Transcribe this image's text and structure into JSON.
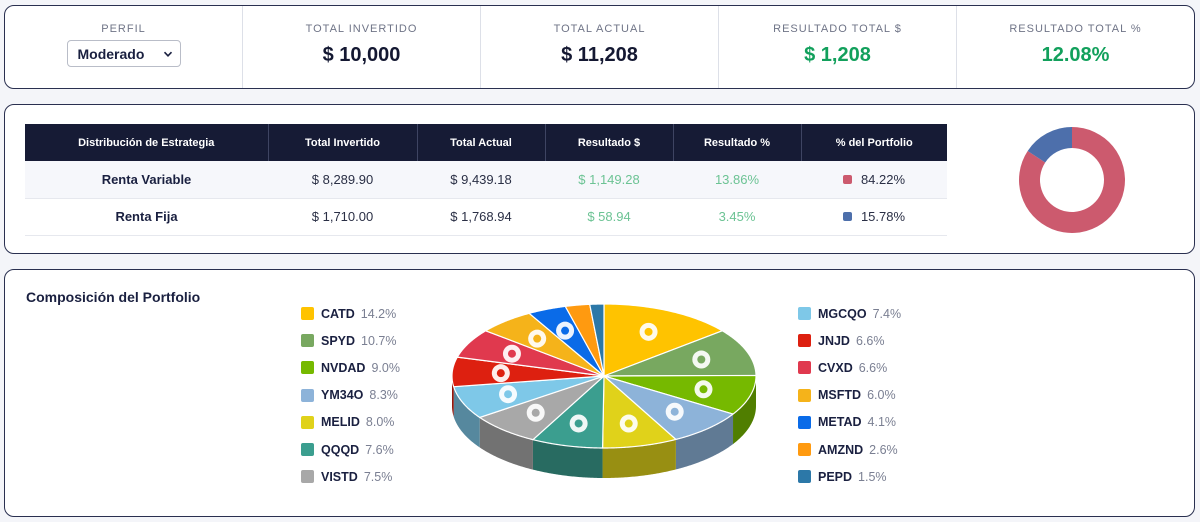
{
  "kpis": {
    "perfil_label": "PERFIL",
    "perfil_value": "Moderado",
    "total_invertido_label": "TOTAL INVERTIDO",
    "total_invertido_value": "$ 10,000",
    "total_actual_label": "TOTAL ACTUAL",
    "total_actual_value": "$ 11,208",
    "resultado_usd_label": "RESULTADO TOTAL $",
    "resultado_usd_value": "$ 1,208",
    "resultado_pct_label": "RESULTADO TOTAL %",
    "resultado_pct_value": "12.08%"
  },
  "strategy_table": {
    "headers": [
      "Distribución de Estrategia",
      "Total Invertido",
      "Total Actual",
      "Resultado $",
      "Resultado %",
      "% del Portfolio"
    ],
    "rows": [
      {
        "name": "Renta Variable",
        "invertido": "$ 8,289.90",
        "actual": "$ 9,439.18",
        "resultado_usd": "$ 1,149.28",
        "resultado_pct": "13.86%",
        "portfolio_pct": "84.22%",
        "color": "#cc5a6e"
      },
      {
        "name": "Renta Fija",
        "invertido": "$ 1,710.00",
        "actual": "$ 1,768.94",
        "resultado_usd": "$ 58.94",
        "resultado_pct": "3.45%",
        "portfolio_pct": "15.78%",
        "color": "#4d6fab"
      }
    ]
  },
  "donut_chart": {
    "values": [
      84.22,
      15.78
    ],
    "colors": [
      "#cc5a6e",
      "#4d6fab"
    ]
  },
  "composition": {
    "title": "Composición del Portfolio",
    "items": [
      {
        "ticker": "CATD",
        "pct": "14.2%",
        "value": 14.2,
        "color": "#ffc300",
        "icon": "cat-icon"
      },
      {
        "ticker": "SPYD",
        "pct": "10.7%",
        "value": 10.7,
        "color": "#78a860",
        "icon": "spdr-icon"
      },
      {
        "ticker": "NVDAD",
        "pct": "9.0%",
        "value": 9.0,
        "color": "#76b900",
        "icon": "nvidia-icon"
      },
      {
        "ticker": "YM34O",
        "pct": "8.3%",
        "value": 8.3,
        "color": "#8db3d9",
        "icon": "yum-icon"
      },
      {
        "ticker": "MELID",
        "pct": "8.0%",
        "value": 8.0,
        "color": "#e0d21a",
        "icon": "mercadolibre-icon"
      },
      {
        "ticker": "QQQD",
        "pct": "7.6%",
        "value": 7.6,
        "color": "#3b9e8f",
        "icon": "invesco-icon"
      },
      {
        "ticker": "VISTD",
        "pct": "7.5%",
        "value": 7.5,
        "color": "#a8a8a8",
        "icon": "vista-icon"
      },
      {
        "ticker": "MGCQO",
        "pct": "7.4%",
        "value": 7.4,
        "color": "#7ec8e8",
        "icon": "pampa-icon"
      },
      {
        "ticker": "JNJD",
        "pct": "6.6%",
        "value": 6.6,
        "color": "#dd2010",
        "icon": "jnj-icon"
      },
      {
        "ticker": "CVXD",
        "pct": "6.6%",
        "value": 6.6,
        "color": "#e0394e",
        "icon": "chevron-icon"
      },
      {
        "ticker": "MSFTD",
        "pct": "6.0%",
        "value": 6.0,
        "color": "#f5b31a",
        "icon": "microsoft-icon"
      },
      {
        "ticker": "METAD",
        "pct": "4.1%",
        "value": 4.1,
        "color": "#0a6be8",
        "icon": "meta-icon"
      },
      {
        "ticker": "AMZND",
        "pct": "2.6%",
        "value": 2.6,
        "color": "#ff9a10",
        "icon": "amazon-icon"
      },
      {
        "ticker": "PEPD",
        "pct": "1.5%",
        "value": 1.5,
        "color": "#2c78a8",
        "icon": "pepsi-icon"
      }
    ]
  }
}
